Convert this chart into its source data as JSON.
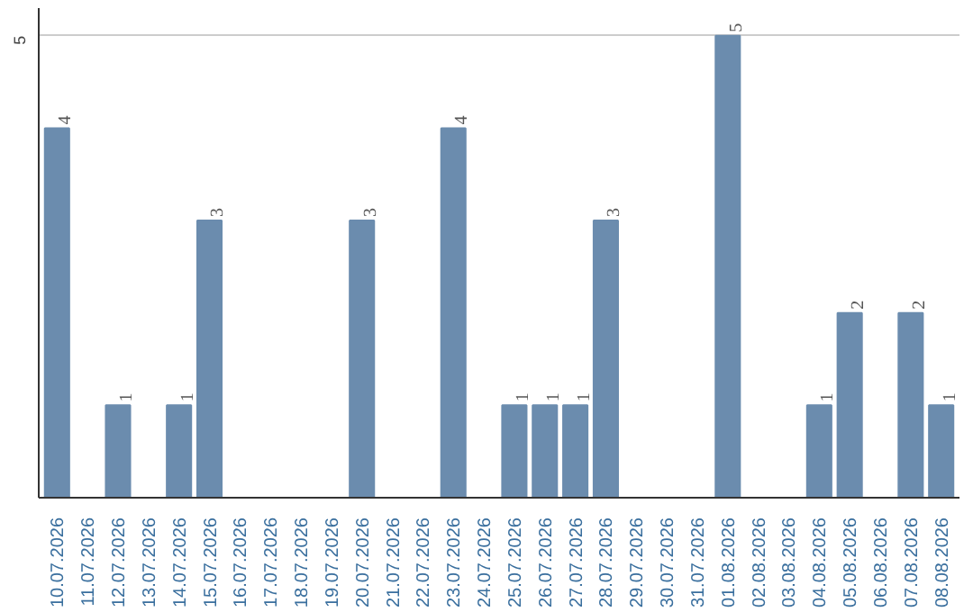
{
  "chart_data": {
    "type": "bar",
    "categories": [
      "10.07.2026",
      "11.07.2026",
      "12.07.2026",
      "13.07.2026",
      "14.07.2026",
      "15.07.2026",
      "16.07.2026",
      "17.07.2026",
      "18.07.2026",
      "19.07.2026",
      "20.07.2026",
      "21.07.2026",
      "22.07.2026",
      "23.07.2026",
      "24.07.2026",
      "25.07.2026",
      "26.07.2026",
      "27.07.2026",
      "28.07.2026",
      "29.07.2026",
      "30.07.2026",
      "31.07.2026",
      "01.08.2026",
      "02.08.2026",
      "03.08.2026",
      "04.08.2026",
      "05.08.2026",
      "06.08.2026",
      "07.08.2026",
      "08.08.2026"
    ],
    "values": [
      4,
      0,
      1,
      0,
      1,
      3,
      0,
      0,
      0,
      0,
      3,
      0,
      0,
      4,
      0,
      1,
      1,
      1,
      3,
      0,
      0,
      0,
      5,
      0,
      0,
      1,
      2,
      0,
      2,
      1
    ],
    "value_labels": [
      "4",
      null,
      "1",
      null,
      "1",
      "3",
      null,
      null,
      null,
      null,
      "3",
      null,
      null,
      "4",
      null,
      "1",
      "1",
      "1",
      "3",
      null,
      null,
      null,
      "5",
      null,
      null,
      "1",
      "2",
      null,
      "2",
      "1"
    ],
    "color": "#6b8cae",
    "ylim": [
      0,
      5.3
    ],
    "yticks": [
      5
    ],
    "grid": "y"
  }
}
